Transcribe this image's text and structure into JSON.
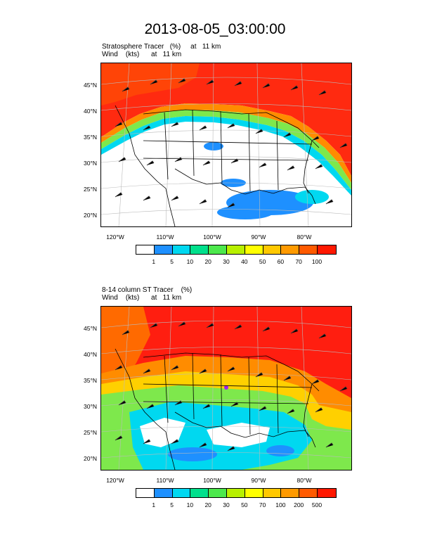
{
  "title": "2013-08-05_03:00:00",
  "panels": [
    {
      "title_line1": "Stratosphere Tracer   (%)     at   11 km",
      "title_line2": "Wind    (kts)      at   11 km",
      "lat_labels": [
        "45°N",
        "40°N",
        "35°N",
        "30°N",
        "25°N",
        "20°N"
      ],
      "lon_labels": [
        "120°W",
        "110°W",
        "100°W",
        "90°W",
        "80°W"
      ],
      "colorbar_labels": [
        "1",
        "5",
        "10",
        "20",
        "30",
        "40",
        "50",
        "60",
        "70",
        "100"
      ],
      "colorbar_colors": [
        "#ffffff",
        "#1e90ff",
        "#00d8f0",
        "#00e08c",
        "#4ce84c",
        "#b8f000",
        "#ffff00",
        "#ffc800",
        "#ff9a00",
        "#ff5a00",
        "#ff1800"
      ]
    },
    {
      "title_line1": "8-14 column ST Tracer    (%)",
      "title_line2": "Wind    (kts)      at   11 km",
      "lat_labels": [
        "45°N",
        "40°N",
        "35°N",
        "30°N",
        "25°N",
        "20°N"
      ],
      "lon_labels": [
        "120°W",
        "110°W",
        "100°W",
        "90°W",
        "80°W"
      ],
      "colorbar_labels": [
        "1",
        "5",
        "10",
        "20",
        "30",
        "50",
        "70",
        "100",
        "200",
        "500"
      ],
      "colorbar_colors": [
        "#ffffff",
        "#1e90ff",
        "#00d8f0",
        "#00e08c",
        "#4ce84c",
        "#b8f000",
        "#ffff00",
        "#ffc800",
        "#ff9a00",
        "#ff5a00",
        "#ff1800"
      ]
    }
  ]
}
